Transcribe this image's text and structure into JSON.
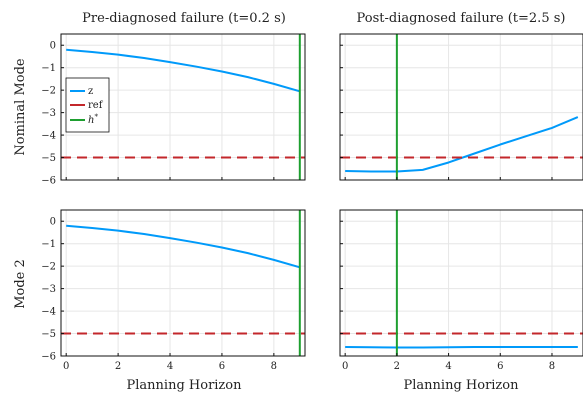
{
  "column_titles": [
    "Pre-diagnosed failure (t=0.2 s)",
    "Post-diagnosed failure  (t=2.5 s)"
  ],
  "row_labels": [
    "Nominal Mode",
    "Mode 2"
  ],
  "xlabel": "Planning Horizon",
  "legend": {
    "placement": "left, inside top-left panel",
    "entries": [
      {
        "label": "z",
        "color": "#009AFA",
        "style": "solid"
      },
      {
        "label": "ref",
        "color": "#C3272B",
        "style": "dashed"
      },
      {
        "label": "h*",
        "label_main": "h",
        "label_sup": "*",
        "color": "#1E9F30",
        "style": "solid"
      }
    ]
  },
  "colors": {
    "z": "#009AFA",
    "ref": "#C3272B",
    "h_star": "#1E9F30"
  },
  "chart_data": [
    {
      "type": "line",
      "row": 0,
      "col": 0,
      "title": "Pre-diagnosed failure (t=0.2 s)",
      "ylabel": "Nominal Mode",
      "xlabel": "",
      "xlim": [
        -0.2,
        9.2
      ],
      "ylim": [
        -6,
        0.5
      ],
      "xticks": [
        0,
        2,
        4,
        6,
        8
      ],
      "yticks": [
        0,
        -1,
        -2,
        -3,
        -4,
        -5,
        -6
      ],
      "show_xtick_labels": false,
      "show_ytick_labels": true,
      "grid": true,
      "series": [
        {
          "key": "z",
          "style": "solid",
          "x": [
            0,
            1,
            2,
            3,
            4,
            5,
            6,
            7,
            8,
            9
          ],
          "y": [
            -0.2,
            -0.3,
            -0.42,
            -0.57,
            -0.75,
            -0.95,
            -1.17,
            -1.42,
            -1.72,
            -2.05
          ]
        },
        {
          "key": "ref",
          "style": "dashed",
          "x": [
            -0.2,
            9.2
          ],
          "y": [
            -5,
            -5
          ]
        },
        {
          "key": "h_star",
          "style": "solid",
          "x": [
            9,
            9
          ],
          "y": [
            -6,
            0.5
          ]
        }
      ]
    },
    {
      "type": "line",
      "row": 0,
      "col": 1,
      "title": "Post-diagnosed failure  (t=2.5 s)",
      "ylabel": "",
      "xlabel": "",
      "xlim": [
        -0.2,
        9.2
      ],
      "ylim": [
        -6,
        0.5
      ],
      "xticks": [
        0,
        2,
        4,
        6,
        8
      ],
      "yticks": [
        0,
        -1,
        -2,
        -3,
        -4,
        -5,
        -6
      ],
      "show_xtick_labels": false,
      "show_ytick_labels": false,
      "grid": true,
      "series": [
        {
          "key": "z",
          "style": "solid",
          "x": [
            0,
            1,
            2,
            3,
            4,
            5,
            6,
            7,
            8,
            9
          ],
          "y": [
            -5.6,
            -5.62,
            -5.62,
            -5.55,
            -5.22,
            -4.82,
            -4.42,
            -4.05,
            -3.68,
            -3.2
          ]
        },
        {
          "key": "ref",
          "style": "dashed",
          "x": [
            -0.2,
            9.2
          ],
          "y": [
            -5,
            -5
          ]
        },
        {
          "key": "h_star",
          "style": "solid",
          "x": [
            2,
            2
          ],
          "y": [
            -6,
            0.5
          ]
        }
      ]
    },
    {
      "type": "line",
      "row": 1,
      "col": 0,
      "title": "",
      "ylabel": "Mode 2",
      "xlabel": "Planning Horizon",
      "xlim": [
        -0.2,
        9.2
      ],
      "ylim": [
        -6,
        0.5
      ],
      "xticks": [
        0,
        2,
        4,
        6,
        8
      ],
      "yticks": [
        0,
        -1,
        -2,
        -3,
        -4,
        -5,
        -6
      ],
      "show_xtick_labels": true,
      "show_ytick_labels": true,
      "grid": true,
      "series": [
        {
          "key": "z",
          "style": "solid",
          "x": [
            0,
            1,
            2,
            3,
            4,
            5,
            6,
            7,
            8,
            9
          ],
          "y": [
            -0.2,
            -0.3,
            -0.42,
            -0.57,
            -0.75,
            -0.95,
            -1.17,
            -1.42,
            -1.72,
            -2.05
          ]
        },
        {
          "key": "ref",
          "style": "dashed",
          "x": [
            -0.2,
            9.2
          ],
          "y": [
            -5,
            -5
          ]
        },
        {
          "key": "h_star",
          "style": "solid",
          "x": [
            9,
            9
          ],
          "y": [
            -6,
            0.5
          ]
        }
      ]
    },
    {
      "type": "line",
      "row": 1,
      "col": 1,
      "title": "",
      "ylabel": "",
      "xlabel": "Planning Horizon",
      "xlim": [
        -0.2,
        9.2
      ],
      "ylim": [
        -6,
        0.5
      ],
      "xticks": [
        0,
        2,
        4,
        6,
        8
      ],
      "yticks": [
        0,
        -1,
        -2,
        -3,
        -4,
        -5,
        -6
      ],
      "show_xtick_labels": true,
      "show_ytick_labels": false,
      "grid": true,
      "series": [
        {
          "key": "z",
          "style": "solid",
          "x": [
            0,
            1,
            2,
            3,
            4,
            5,
            6,
            7,
            8,
            9
          ],
          "y": [
            -5.6,
            -5.61,
            -5.62,
            -5.62,
            -5.61,
            -5.6,
            -5.6,
            -5.6,
            -5.6,
            -5.6
          ]
        },
        {
          "key": "ref",
          "style": "dashed",
          "x": [
            -0.2,
            9.2
          ],
          "y": [
            -5,
            -5
          ]
        },
        {
          "key": "h_star",
          "style": "solid",
          "x": [
            2,
            2
          ],
          "y": [
            -6,
            0.5
          ]
        }
      ]
    }
  ]
}
